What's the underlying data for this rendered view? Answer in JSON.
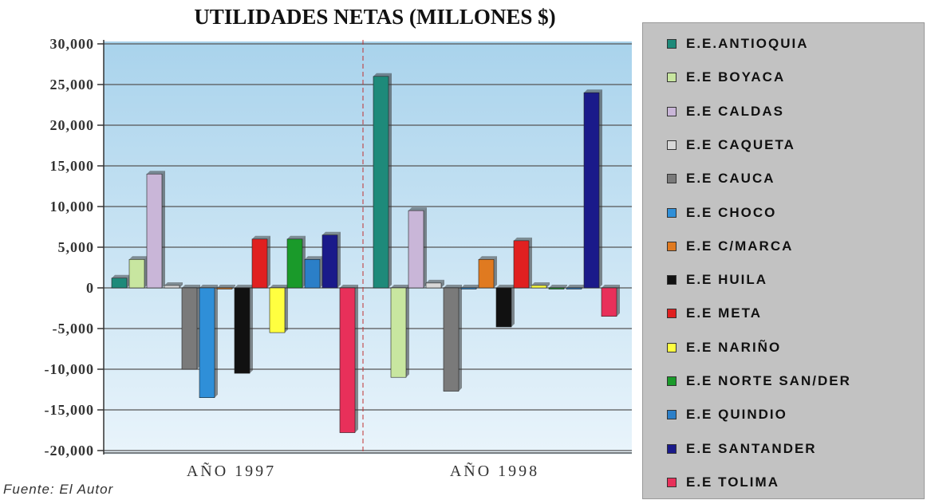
{
  "chart_data": {
    "type": "bar",
    "title": "UTILIDADES NETAS (MILLONES $)",
    "categories": [
      "AÑO 1997",
      "AÑO 1998"
    ],
    "yticks": [
      "30,000",
      "25,000",
      "20,000",
      "15,000",
      "10,000",
      "5,000",
      "0",
      "-5,000",
      "-10,000",
      "-15,000",
      "-20,000"
    ],
    "ylim": [
      -20000,
      30000
    ],
    "grid": true,
    "legend_position": "right",
    "series": [
      {
        "name": "E.E.ANTIOQUIA",
        "color": "#1e8a7a",
        "values": [
          1200,
          26000
        ]
      },
      {
        "name": "E.E BOYACA",
        "color": "#c8e6a0",
        "values": [
          3500,
          -11000
        ]
      },
      {
        "name": "E.E CALDAS",
        "color": "#c9b6d8",
        "values": [
          14000,
          9500
        ]
      },
      {
        "name": "E.E CAQUETA",
        "color": "#d8d8d8",
        "values": [
          300,
          600
        ]
      },
      {
        "name": "E.E CAUCA",
        "color": "#7a7a7a",
        "values": [
          -10000,
          -12700
        ]
      },
      {
        "name": "E.E CHOCO",
        "color": "#2f8fd8",
        "values": [
          -13500,
          0
        ]
      },
      {
        "name": "E.E C/MARCA",
        "color": "#e07a20",
        "values": [
          0,
          3500
        ]
      },
      {
        "name": "E.E HUILA",
        "color": "#111111",
        "values": [
          -10500,
          -4800
        ]
      },
      {
        "name": "E.E META",
        "color": "#e02020",
        "values": [
          6000,
          5800
        ]
      },
      {
        "name": "E.E NARIÑO",
        "color": "#ffff40",
        "values": [
          -5500,
          300
        ]
      },
      {
        "name": "E.E NORTE SAN/DER",
        "color": "#1a9a2a",
        "values": [
          6000,
          0
        ]
      },
      {
        "name": "E.E QUINDIO",
        "color": "#2b7fc8",
        "values": [
          3500,
          0
        ]
      },
      {
        "name": "E.E SANTANDER",
        "color": "#1a1a8a",
        "values": [
          6500,
          24000
        ]
      },
      {
        "name": "E.E TOLIMA",
        "color": "#e8305a",
        "values": [
          -17800,
          -3500
        ]
      }
    ]
  },
  "source": "Fuente: El Autor"
}
